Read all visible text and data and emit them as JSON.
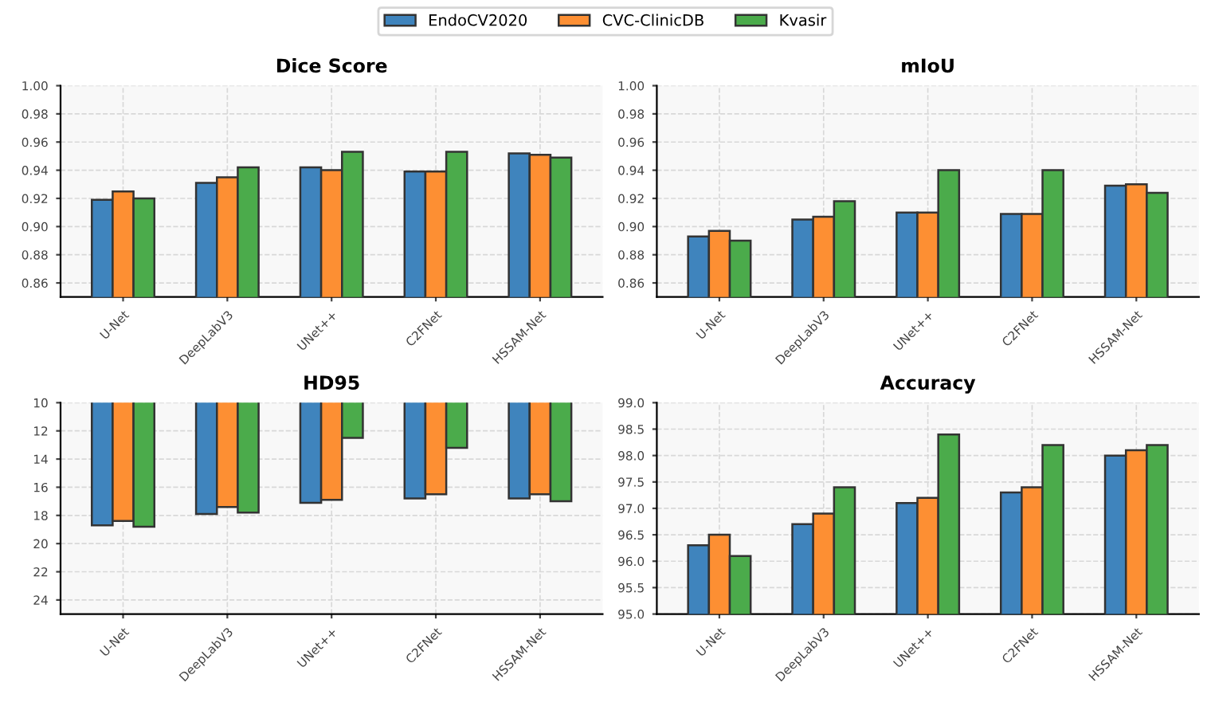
{
  "chart_data": [
    {
      "type": "bar",
      "title": "Dice Score",
      "categories": [
        "U-Net",
        "DeepLabV3",
        "UNet++",
        "C2FNet",
        "HSSAM-Net"
      ],
      "legend": "top",
      "grid": true,
      "series": [
        {
          "name": "EndoCV2020",
          "color": "#3f84bd",
          "values": [
            0.919,
            0.931,
            0.942,
            0.939,
            0.952
          ]
        },
        {
          "name": "CVC-ClinicDB",
          "color": "#fd8f33",
          "values": [
            0.925,
            0.935,
            0.94,
            0.939,
            0.951
          ]
        },
        {
          "name": "Kvasir",
          "color": "#4bab4b",
          "values": [
            0.92,
            0.942,
            0.953,
            0.953,
            0.949
          ]
        }
      ],
      "ylim": [
        0.85,
        1.0
      ],
      "yticks": [
        {
          "value": 0.86,
          "label": "0.86"
        },
        {
          "value": 0.88,
          "label": "0.88"
        },
        {
          "value": 0.9,
          "label": "0.90"
        },
        {
          "value": 0.92,
          "label": "0.92"
        },
        {
          "value": 0.94,
          "label": "0.94"
        },
        {
          "value": 0.96,
          "label": "0.96"
        },
        {
          "value": 0.98,
          "label": "0.98"
        },
        {
          "value": 1.0,
          "label": "1.00"
        }
      ]
    },
    {
      "type": "bar",
      "title": "mIoU",
      "categories": [
        "U-Net",
        "DeepLabV3",
        "UNet++",
        "C2FNet",
        "HSSAM-Net"
      ],
      "grid": true,
      "series": [
        {
          "color": "#3f84bd",
          "values": [
            0.893,
            0.905,
            0.91,
            0.909,
            0.929
          ]
        },
        {
          "color": "#fd8f33",
          "values": [
            0.897,
            0.907,
            0.91,
            0.909,
            0.93
          ]
        },
        {
          "color": "#4bab4b",
          "values": [
            0.89,
            0.918,
            0.94,
            0.94,
            0.924
          ]
        }
      ],
      "ylim": [
        0.85,
        1.0
      ],
      "yticks": [
        {
          "value": 0.86,
          "label": "0.86"
        },
        {
          "value": 0.88,
          "label": "0.88"
        },
        {
          "value": 0.9,
          "label": "0.90"
        },
        {
          "value": 0.92,
          "label": "0.92"
        },
        {
          "value": 0.94,
          "label": "0.94"
        },
        {
          "value": 0.96,
          "label": "0.96"
        },
        {
          "value": 0.98,
          "label": "0.98"
        },
        {
          "value": 1.0,
          "label": "1.00"
        }
      ]
    },
    {
      "type": "bar",
      "title": "HD95",
      "categories": [
        "U-Net",
        "DeepLabV3",
        "UNet++",
        "C2FNet",
        "HSSAM-Net"
      ],
      "grid": true,
      "series": [
        {
          "color": "#3f84bd",
          "values": [
            18.7,
            17.9,
            17.1,
            16.8,
            16.8
          ]
        },
        {
          "color": "#fd8f33",
          "values": [
            18.4,
            17.4,
            16.9,
            16.5,
            16.5
          ]
        },
        {
          "color": "#4bab4b",
          "values": [
            18.8,
            17.8,
            12.5,
            13.2,
            17.0
          ]
        }
      ],
      "ylim": [
        25,
        10
      ],
      "yticks": [
        10,
        12,
        14,
        16,
        18,
        20,
        22,
        24
      ]
    },
    {
      "type": "bar",
      "title": "Accuracy",
      "categories": [
        "U-Net",
        "DeepLabV3",
        "UNet++",
        "C2FNet",
        "HSSAM-Net"
      ],
      "grid": true,
      "series": [
        {
          "color": "#3f84bd",
          "values": [
            96.3,
            96.7,
            97.1,
            97.3,
            98.0
          ]
        },
        {
          "color": "#fd8f33",
          "values": [
            96.5,
            96.9,
            97.2,
            97.4,
            98.1
          ]
        },
        {
          "color": "#4bab4b",
          "values": [
            96.1,
            97.4,
            98.4,
            98.2,
            98.2
          ]
        }
      ],
      "ylim": [
        95.0,
        99.0
      ],
      "yticks": [
        {
          "value": 95.0,
          "label": "95.0"
        },
        {
          "value": 95.5,
          "label": "95.5"
        },
        {
          "value": 96.0,
          "label": "96.0"
        },
        {
          "value": 96.5,
          "label": "96.5"
        },
        {
          "value": 97.0,
          "label": "97.0"
        },
        {
          "value": 97.5,
          "label": "97.5"
        },
        {
          "value": 98.0,
          "label": "98.0"
        },
        {
          "value": 98.5,
          "label": "98.5"
        },
        {
          "value": 99.0,
          "label": "99.0"
        }
      ]
    }
  ]
}
